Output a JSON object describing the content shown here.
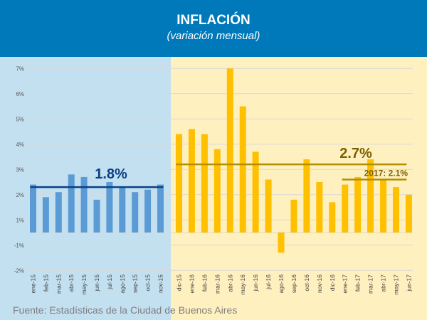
{
  "header": {
    "title": "INFLACIÓN",
    "subtitle": "(variación mensual)"
  },
  "source": "Fuente: Estadísticas de la Ciudad de Buenos Aires",
  "colors": {
    "header": "#0079ba",
    "panel_2015": "#c3e0f1",
    "panel_2016_17": "#fff0bf",
    "bars_2015": "#5b9bd5",
    "bars_2016_17": "#ffc000",
    "avg_2015": "#0b3f84",
    "avg_2016_17": "#b38f00",
    "avg_label_2016_17": "#7f6000"
  },
  "chart_data": {
    "type": "bar",
    "title": "INFLACIÓN",
    "subtitle": "(variación mensual)",
    "ylim": [
      -2,
      7
    ],
    "y_tick_labels": [
      "7%",
      "6%",
      "5%",
      "4%",
      "3%",
      "2%",
      "1%",
      "-1%",
      "-2%"
    ],
    "grid": true,
    "series": [
      {
        "categories": [
          "ene-15",
          "feb-15",
          "mar-15",
          "abr-15",
          "may-15",
          "jun-15",
          "jul-15",
          "ago-15",
          "sep-15",
          "oct-15",
          "nov-15"
        ],
        "values": [
          1.9,
          1.4,
          1.6,
          2.3,
          2.2,
          1.3,
          2.0,
          1.8,
          1.6,
          1.7,
          1.9
        ]
      },
      {
        "categories": [
          "dic-15",
          "ene-16",
          "feb-16",
          "mar-16",
          "abr-16",
          "may-16",
          "jun-16",
          "jul-16",
          "ago-16",
          "sep-16",
          "oct-16",
          "nov-16",
          "dic-16",
          "ene-17",
          "feb-17",
          "mar-17",
          "abr-17",
          "may-17",
          "jun-17"
        ],
        "values": [
          3.9,
          4.1,
          3.9,
          3.3,
          6.5,
          5.0,
          3.2,
          2.1,
          -0.8,
          1.3,
          2.9,
          2.0,
          1.2,
          1.9,
          2.2,
          2.9,
          2.1,
          1.8,
          1.5
        ]
      }
    ],
    "annotations": [
      {
        "label": "1.8%",
        "value": 1.8,
        "from": "ene-15",
        "to": "nov-15"
      },
      {
        "label": "2.7%",
        "value": 2.7,
        "from": "dic-15",
        "to": "jun-17"
      },
      {
        "label": "2017:  2.1%",
        "value": 2.1,
        "from": "ene-17",
        "to": "jun-17"
      }
    ]
  }
}
